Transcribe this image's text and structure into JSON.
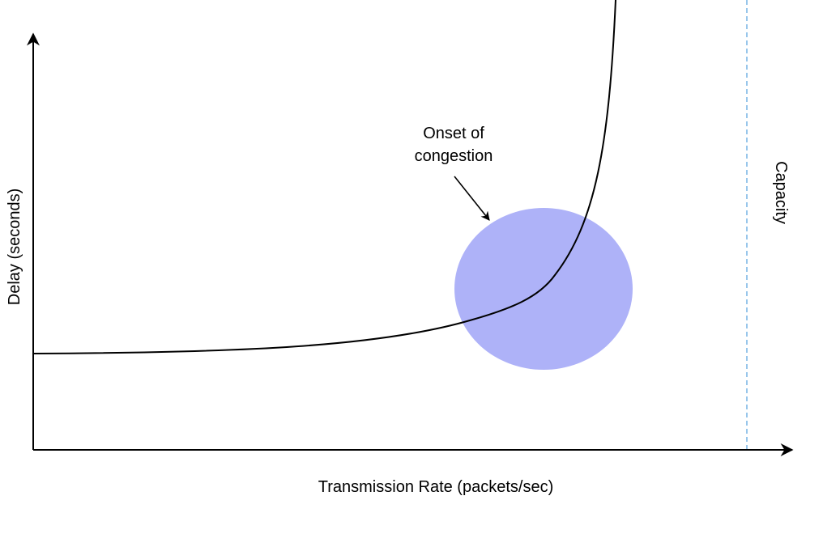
{
  "labels": {
    "x_axis": "Transmission Rate (packets/sec)",
    "y_axis": "Delay (seconds)",
    "capacity": "Capacity",
    "annotation_line1": "Onset of",
    "annotation_line2": "congestion"
  },
  "colors": {
    "axis": "#000000",
    "curve": "#000000",
    "congestion_region_fill": "#aeb2f8",
    "capacity_line": "#7fb8e6",
    "background": "#ffffff"
  }
}
